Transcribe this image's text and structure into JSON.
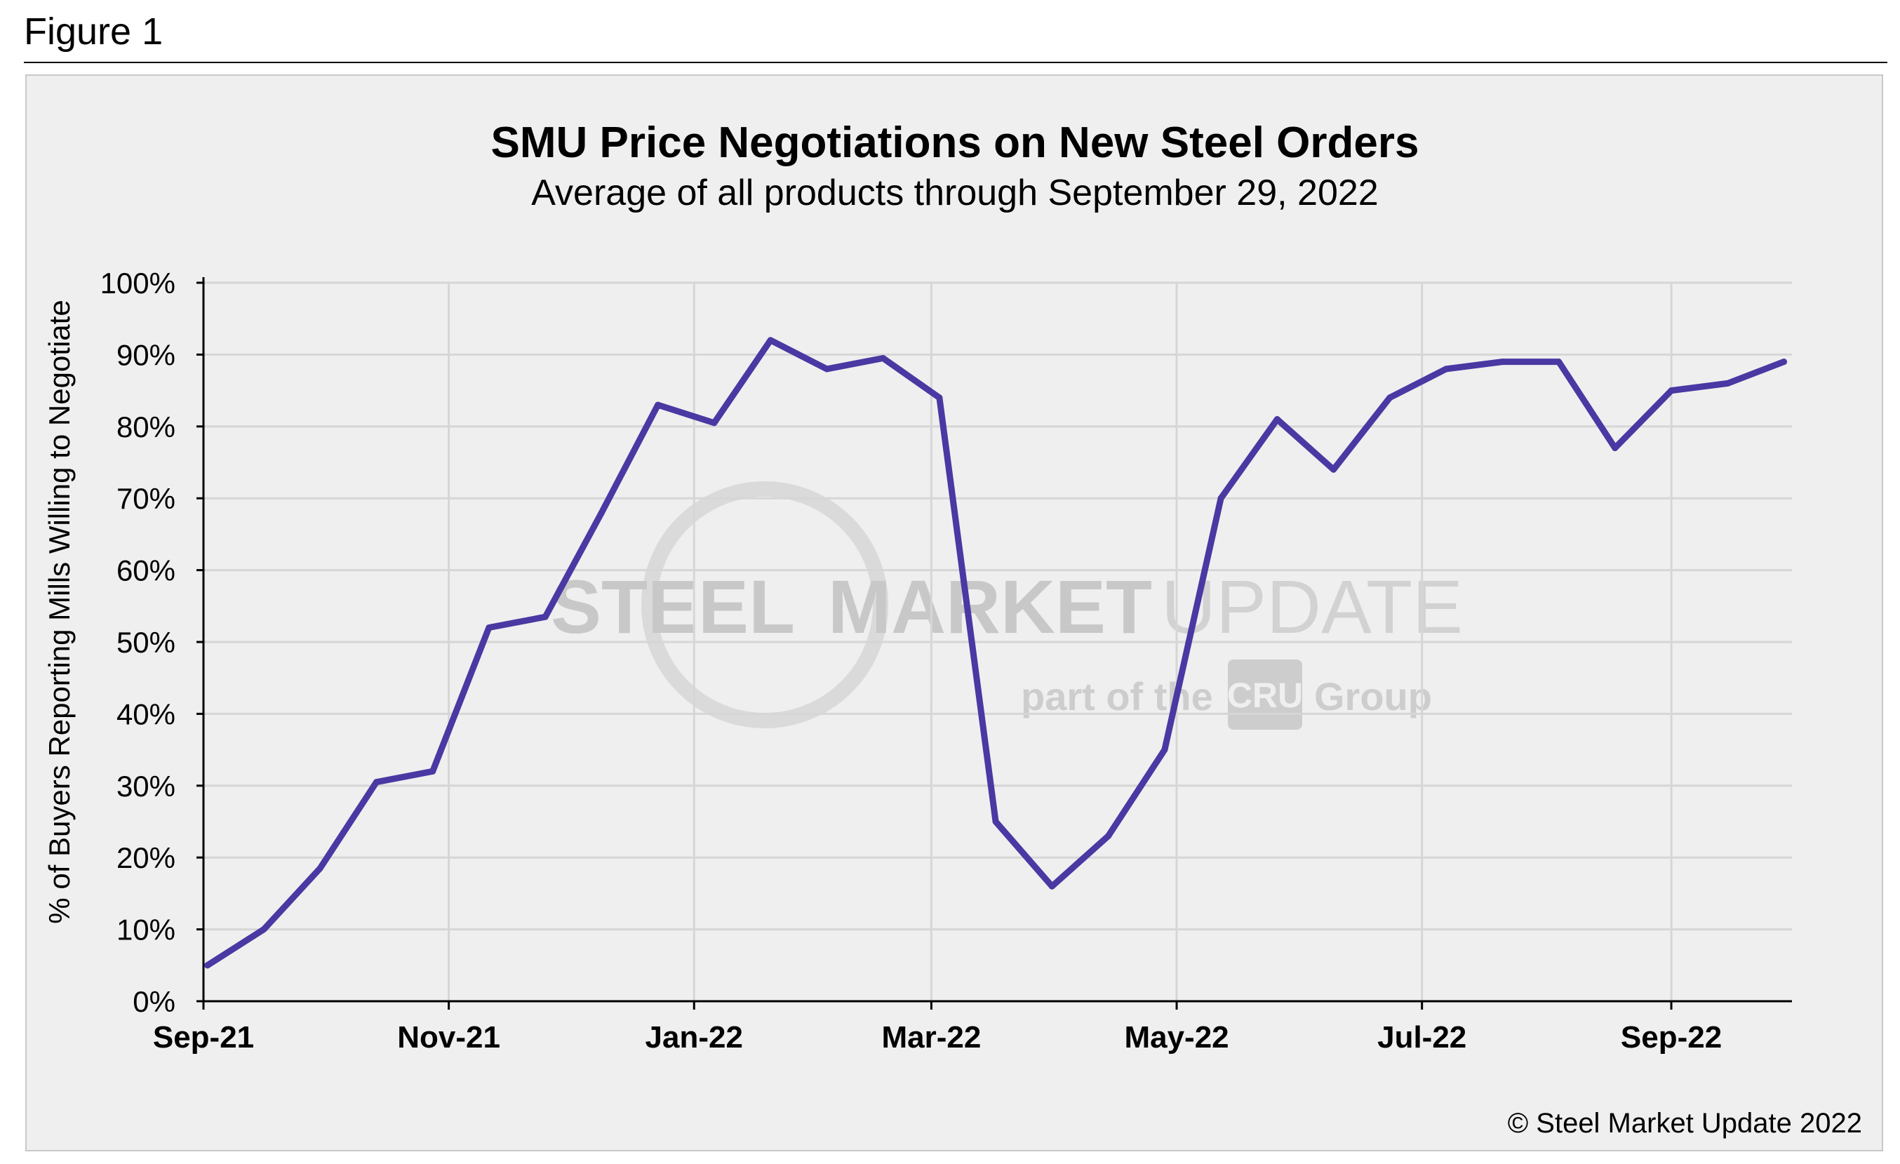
{
  "figure_label": "Figure 1",
  "copyright": "© Steel Market Update 2022",
  "watermark": {
    "word1": "STEEL",
    "word2": "MARKET",
    "word3": "UPDATE",
    "tagline_pre": "part of the",
    "tagline_brand": "CRU",
    "tagline_post": "Group"
  },
  "colors": {
    "line": "#4a38a3",
    "grid": "#d6d6d6",
    "panel_bg": "#efefef"
  },
  "chart_data": {
    "type": "line",
    "title": "SMU Price Negotiations on New Steel Orders",
    "subtitle": "Average of all products through September 29, 2022",
    "xlabel": "",
    "ylabel": "% of Buyers Reporting Mills Willing to Negotiate",
    "ylim": [
      0,
      100
    ],
    "y_ticks": [
      "0%",
      "10%",
      "20%",
      "30%",
      "40%",
      "50%",
      "60%",
      "70%",
      "80%",
      "90%",
      "100%"
    ],
    "x_tick_labels": [
      "Sep-21",
      "Nov-21",
      "Jan-22",
      "Mar-22",
      "May-22",
      "Jul-22",
      "Sep-22"
    ],
    "x_tick_days": [
      0,
      61,
      122,
      181,
      242,
      303,
      365
    ],
    "x_max_days": 395,
    "grid": true,
    "series": [
      {
        "name": "Average of all products",
        "x_days": [
          1,
          15,
          29,
          43,
          57,
          71,
          85,
          99,
          113,
          127,
          141,
          155,
          169,
          183,
          197,
          211,
          225,
          239,
          253,
          267,
          281,
          295,
          309,
          323,
          337,
          351,
          365,
          379,
          393
        ],
        "values": [
          5,
          10,
          18.5,
          30.5,
          32,
          52,
          53.5,
          68,
          83,
          80.5,
          92,
          88,
          89.5,
          84,
          25,
          16,
          23,
          35,
          70,
          81,
          74,
          84,
          88,
          89,
          89,
          77,
          85,
          86,
          89
        ]
      }
    ]
  }
}
